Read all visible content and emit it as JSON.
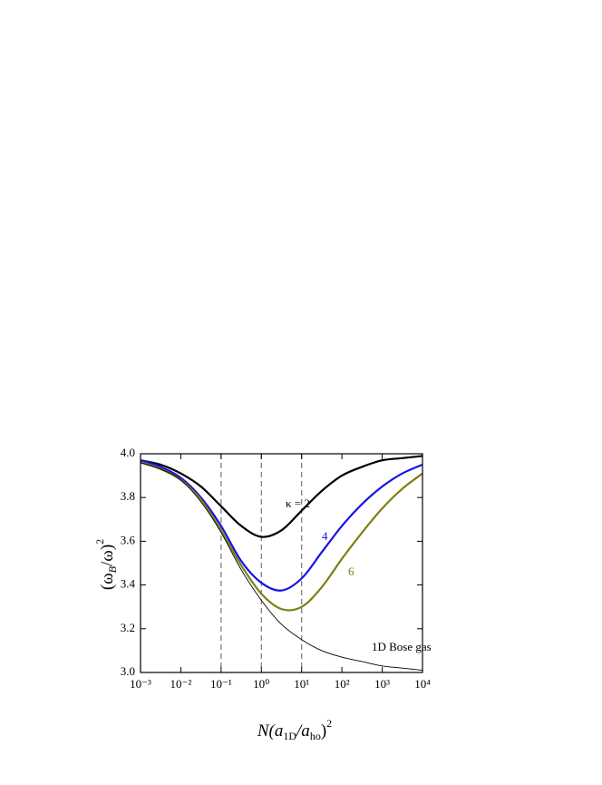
{
  "chart_data": {
    "type": "line",
    "x_label": [
      "N(a",
      "1D",
      "/a",
      "ho",
      ")",
      "2"
    ],
    "y_label": [
      "(ω",
      "B",
      "/ω)",
      "2"
    ],
    "x": [
      0.001,
      0.00316,
      0.01,
      0.0316,
      0.1,
      0.316,
      1,
      3.16,
      10,
      31.6,
      100,
      316,
      1000,
      3162,
      10000
    ],
    "series": [
      {
        "label": "κ = 2",
        "color": "#000000",
        "width": 2.2,
        "values": [
          3.97,
          3.95,
          3.91,
          3.85,
          3.76,
          3.67,
          3.62,
          3.65,
          3.74,
          3.83,
          3.9,
          3.94,
          3.97,
          3.98,
          3.99
        ]
      },
      {
        "label": "4",
        "color": "#1414e6",
        "width": 2.2,
        "values": [
          3.97,
          3.94,
          3.89,
          3.8,
          3.67,
          3.51,
          3.41,
          3.375,
          3.43,
          3.55,
          3.67,
          3.77,
          3.85,
          3.91,
          3.95
        ]
      },
      {
        "label": "6",
        "color": "#7f7f14",
        "width": 2.2,
        "values": [
          3.96,
          3.93,
          3.88,
          3.79,
          3.65,
          3.49,
          3.36,
          3.29,
          3.3,
          3.39,
          3.52,
          3.64,
          3.75,
          3.84,
          3.91
        ]
      },
      {
        "label": "1D Bose gas",
        "color": "#000000",
        "width": 0.9,
        "values": [
          3.96,
          3.93,
          3.88,
          3.78,
          3.64,
          3.47,
          3.33,
          3.22,
          3.15,
          3.1,
          3.07,
          3.05,
          3.03,
          3.02,
          3.01
        ]
      }
    ],
    "x_log": true,
    "xlim": [
      0.001,
      10000
    ],
    "xticks": [
      {
        "value": 0.001,
        "label": "10⁻³"
      },
      {
        "value": 0.01,
        "label": "10⁻²"
      },
      {
        "value": 0.1,
        "label": "10⁻¹"
      },
      {
        "value": 1,
        "label": "10⁰"
      },
      {
        "value": 10,
        "label": "10¹"
      },
      {
        "value": 100,
        "label": "10²"
      },
      {
        "value": 1000,
        "label": "10³"
      },
      {
        "value": 10000,
        "label": "10⁴"
      }
    ],
    "ylim": [
      3.0,
      4.0
    ],
    "yticks": [
      {
        "value": 3.0,
        "label": "3.0"
      },
      {
        "value": 3.2,
        "label": "3.2"
      },
      {
        "value": 3.4,
        "label": "3.4"
      },
      {
        "value": 3.6,
        "label": "3.6"
      },
      {
        "value": 3.8,
        "label": "3.8"
      },
      {
        "value": 4.0,
        "label": "4.0"
      }
    ],
    "dashed_x": [
      0.1,
      1,
      10
    ]
  }
}
